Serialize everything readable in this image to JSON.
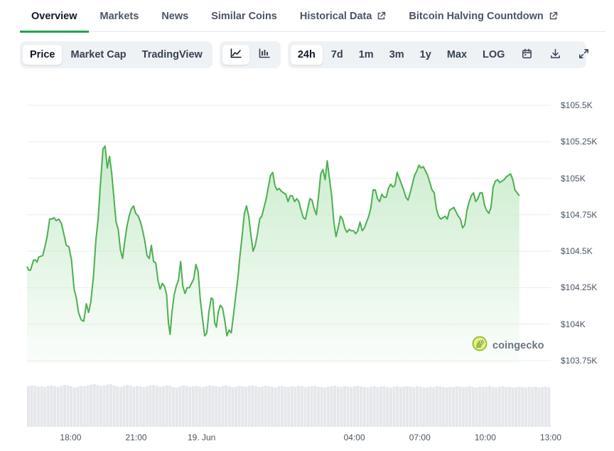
{
  "nav": {
    "tabs": [
      {
        "label": "Overview",
        "active": true,
        "external": false
      },
      {
        "label": "Markets",
        "active": false,
        "external": false
      },
      {
        "label": "News",
        "active": false,
        "external": false
      },
      {
        "label": "Similar Coins",
        "active": false,
        "external": false
      },
      {
        "label": "Historical Data",
        "active": false,
        "external": true
      },
      {
        "label": "Bitcoin Halving Countdown",
        "active": false,
        "external": true
      }
    ]
  },
  "toolbar": {
    "chart_views": [
      "Price",
      "Market Cap",
      "TradingView"
    ],
    "selected_view": "Price",
    "chart_styles": [
      "line-chart-icon",
      "candlestick-icon"
    ],
    "selected_style": "line-chart-icon",
    "ranges": [
      "24h",
      "7d",
      "1m",
      "3m",
      "1y",
      "Max",
      "LOG"
    ],
    "selected_range": "24h",
    "actions": [
      "calendar-icon",
      "download-icon",
      "expand-icon"
    ]
  },
  "chart_data": {
    "type": "area",
    "line_color": "#4caf50",
    "fill_color": "#c8ebcb",
    "y_ticks": [
      "$105.5K",
      "$105.25K",
      "$105K",
      "$104.75K",
      "$104.5K",
      "$104.25K",
      "$104K",
      "$103.75K"
    ],
    "y_tick_values": [
      105500,
      105250,
      105000,
      104750,
      104500,
      104250,
      104000,
      103750
    ],
    "ylim": [
      103750,
      105500
    ],
    "x_ticks": [
      "18:00",
      "21:00",
      "19. Jun",
      "04:00",
      "07:00",
      "10:00",
      "13:00"
    ],
    "x_tick_hours": [
      3.2,
      6.2,
      9.2,
      16.2,
      19.2,
      22.2,
      25.2
    ],
    "xlim": [
      0,
      24.0
    ],
    "grid": true,
    "volume_bars": true,
    "series": [
      {
        "values": [
          [
            0.0,
            104395
          ],
          [
            0.08,
            104370
          ],
          [
            0.16,
            104370
          ],
          [
            0.3,
            104440
          ],
          [
            0.38,
            104440
          ],
          [
            0.46,
            104425
          ],
          [
            0.54,
            104460
          ],
          [
            0.62,
            104465
          ],
          [
            0.72,
            104470
          ],
          [
            0.82,
            104530
          ],
          [
            0.92,
            104600
          ],
          [
            1.04,
            104720
          ],
          [
            1.14,
            104720
          ],
          [
            1.24,
            104730
          ],
          [
            1.34,
            104710
          ],
          [
            1.46,
            104720
          ],
          [
            1.58,
            104690
          ],
          [
            1.7,
            104610
          ],
          [
            1.8,
            104540
          ],
          [
            1.92,
            104530
          ],
          [
            2.04,
            104440
          ],
          [
            2.16,
            104240
          ],
          [
            2.26,
            104180
          ],
          [
            2.36,
            104080
          ],
          [
            2.48,
            104030
          ],
          [
            2.6,
            104020
          ],
          [
            2.72,
            104140
          ],
          [
            2.82,
            104080
          ],
          [
            2.92,
            104150
          ],
          [
            3.04,
            104320
          ],
          [
            3.16,
            104580
          ],
          [
            3.26,
            104720
          ],
          [
            3.36,
            104950
          ],
          [
            3.48,
            105200
          ],
          [
            3.58,
            105220
          ],
          [
            3.68,
            105070
          ],
          [
            3.78,
            105150
          ],
          [
            3.88,
            105040
          ],
          [
            3.98,
            104870
          ],
          [
            4.08,
            104700
          ],
          [
            4.18,
            104650
          ],
          [
            4.28,
            104510
          ],
          [
            4.38,
            104450
          ],
          [
            4.48,
            104570
          ],
          [
            4.58,
            104670
          ],
          [
            4.68,
            104740
          ],
          [
            4.78,
            104790
          ],
          [
            4.88,
            104810
          ],
          [
            4.98,
            104760
          ],
          [
            5.1,
            104740
          ],
          [
            5.2,
            104700
          ],
          [
            5.3,
            104640
          ],
          [
            5.4,
            104570
          ],
          [
            5.5,
            104470
          ],
          [
            5.6,
            104450
          ],
          [
            5.7,
            104540
          ],
          [
            5.8,
            104430
          ],
          [
            5.9,
            104420
          ],
          [
            6.0,
            104300
          ],
          [
            6.1,
            104240
          ],
          [
            6.2,
            104280
          ],
          [
            6.3,
            104260
          ],
          [
            6.4,
            104200
          ],
          [
            6.48,
            104010
          ],
          [
            6.56,
            103930
          ],
          [
            6.64,
            104080
          ],
          [
            6.74,
            104200
          ],
          [
            6.84,
            104260
          ],
          [
            6.94,
            104300
          ],
          [
            7.04,
            104430
          ],
          [
            7.14,
            104260
          ],
          [
            7.24,
            104210
          ],
          [
            7.34,
            104250
          ],
          [
            7.44,
            104250
          ],
          [
            7.54,
            104280
          ],
          [
            7.64,
            104310
          ],
          [
            7.74,
            104410
          ],
          [
            7.84,
            104360
          ],
          [
            7.94,
            104170
          ],
          [
            8.04,
            104040
          ],
          [
            8.14,
            103920
          ],
          [
            8.24,
            103940
          ],
          [
            8.34,
            104090
          ],
          [
            8.44,
            104180
          ],
          [
            8.52,
            104170
          ],
          [
            8.6,
            104010
          ],
          [
            8.68,
            103980
          ],
          [
            8.76,
            104080
          ],
          [
            8.86,
            104130
          ],
          [
            8.96,
            104110
          ],
          [
            9.06,
            104030
          ],
          [
            9.16,
            103920
          ],
          [
            9.26,
            103960
          ],
          [
            9.36,
            103940
          ],
          [
            9.46,
            104060
          ],
          [
            9.56,
            104190
          ],
          [
            9.66,
            104310
          ],
          [
            9.76,
            104470
          ],
          [
            9.86,
            104610
          ],
          [
            9.96,
            104760
          ],
          [
            10.06,
            104810
          ],
          [
            10.16,
            104740
          ],
          [
            10.26,
            104610
          ],
          [
            10.36,
            104500
          ],
          [
            10.46,
            104540
          ],
          [
            10.56,
            104620
          ],
          [
            10.66,
            104720
          ],
          [
            10.76,
            104740
          ],
          [
            10.86,
            104800
          ],
          [
            10.96,
            104860
          ],
          [
            11.06,
            104940
          ],
          [
            11.16,
            105020
          ],
          [
            11.26,
            105040
          ],
          [
            11.36,
            104950
          ],
          [
            11.46,
            104920
          ],
          [
            11.56,
            104930
          ],
          [
            11.66,
            104910
          ],
          [
            11.76,
            104900
          ],
          [
            11.86,
            104890
          ],
          [
            11.96,
            104840
          ],
          [
            12.06,
            104880
          ],
          [
            12.16,
            104880
          ],
          [
            12.26,
            104840
          ],
          [
            12.36,
            104860
          ],
          [
            12.46,
            104840
          ],
          [
            12.56,
            104780
          ],
          [
            12.66,
            104730
          ],
          [
            12.76,
            104720
          ],
          [
            12.86,
            104790
          ],
          [
            12.96,
            104860
          ],
          [
            13.06,
            104850
          ],
          [
            13.16,
            104790
          ],
          [
            13.26,
            104750
          ],
          [
            13.36,
            104880
          ],
          [
            13.46,
            105030
          ],
          [
            13.56,
            105060
          ],
          [
            13.66,
            104990
          ],
          [
            13.76,
            105120
          ],
          [
            13.86,
            105000
          ],
          [
            13.96,
            104880
          ],
          [
            14.06,
            104700
          ],
          [
            14.16,
            104600
          ],
          [
            14.26,
            104660
          ],
          [
            14.36,
            104740
          ],
          [
            14.46,
            104720
          ],
          [
            14.56,
            104660
          ],
          [
            14.66,
            104630
          ],
          [
            14.76,
            104650
          ],
          [
            14.86,
            104640
          ],
          [
            14.96,
            104640
          ],
          [
            15.06,
            104620
          ],
          [
            15.16,
            104640
          ],
          [
            15.26,
            104700
          ],
          [
            15.36,
            104640
          ],
          [
            15.46,
            104660
          ],
          [
            15.56,
            104700
          ],
          [
            15.66,
            104740
          ],
          [
            15.76,
            104800
          ],
          [
            15.86,
            104920
          ],
          [
            15.96,
            104920
          ],
          [
            16.06,
            104860
          ],
          [
            16.16,
            104840
          ],
          [
            16.26,
            104890
          ],
          [
            16.36,
            104870
          ],
          [
            16.46,
            104870
          ],
          [
            16.56,
            104930
          ],
          [
            16.66,
            104960
          ],
          [
            16.76,
            104940
          ],
          [
            16.86,
            104950
          ],
          [
            16.96,
            105040
          ],
          [
            17.06,
            105000
          ],
          [
            17.16,
            104960
          ],
          [
            17.26,
            104920
          ],
          [
            17.36,
            104870
          ],
          [
            17.46,
            104850
          ],
          [
            17.56,
            104900
          ],
          [
            17.66,
            104960
          ],
          [
            17.76,
            105020
          ],
          [
            17.86,
            105050
          ],
          [
            17.96,
            105090
          ],
          [
            18.06,
            105070
          ],
          [
            18.16,
            105080
          ],
          [
            18.26,
            105050
          ],
          [
            18.36,
            105020
          ],
          [
            18.46,
            104970
          ],
          [
            18.56,
            104920
          ],
          [
            18.66,
            104900
          ],
          [
            18.76,
            104790
          ],
          [
            18.86,
            104740
          ],
          [
            18.96,
            104720
          ],
          [
            19.06,
            104730
          ],
          [
            19.16,
            104740
          ],
          [
            19.26,
            104720
          ],
          [
            19.36,
            104780
          ],
          [
            19.46,
            104790
          ],
          [
            19.56,
            104800
          ],
          [
            19.66,
            104770
          ],
          [
            19.76,
            104740
          ],
          [
            19.86,
            104720
          ],
          [
            19.96,
            104660
          ],
          [
            20.06,
            104680
          ],
          [
            20.16,
            104780
          ],
          [
            20.26,
            104840
          ],
          [
            20.36,
            104880
          ],
          [
            20.46,
            104900
          ],
          [
            20.56,
            104840
          ],
          [
            20.66,
            104860
          ],
          [
            20.76,
            104900
          ],
          [
            20.86,
            104900
          ],
          [
            20.96,
            104820
          ],
          [
            21.06,
            104780
          ],
          [
            21.16,
            104760
          ],
          [
            21.26,
            104800
          ],
          [
            21.36,
            104940
          ],
          [
            21.46,
            104980
          ],
          [
            21.56,
            104990
          ],
          [
            21.66,
            104970
          ],
          [
            21.76,
            104980
          ],
          [
            21.86,
            104990
          ],
          [
            21.96,
            105010
          ],
          [
            22.06,
            105020
          ],
          [
            22.16,
            105030
          ],
          [
            22.26,
            104990
          ],
          [
            22.36,
            104920
          ],
          [
            22.46,
            104900
          ],
          [
            22.56,
            104880
          ]
        ]
      }
    ],
    "volume": [
      0.95,
      0.97,
      0.96,
      0.94,
      0.95,
      0.93,
      0.96,
      0.97,
      0.95,
      0.94,
      0.96,
      0.98,
      0.97,
      0.95,
      0.92,
      0.94,
      0.96,
      0.95,
      0.97,
      0.99,
      1.0,
      0.98,
      0.96,
      0.97,
      0.99,
      1.0,
      0.97,
      0.95,
      0.93,
      0.96,
      0.98,
      0.97,
      0.94,
      0.96,
      0.95,
      0.93,
      0.95,
      0.97,
      0.98,
      0.96,
      0.94,
      0.95,
      0.97,
      0.96,
      0.93,
      0.92,
      0.95,
      0.97,
      0.96,
      0.94,
      0.95,
      0.96,
      0.94,
      0.93,
      0.95,
      0.97,
      0.96,
      0.95,
      0.94,
      0.96,
      0.97,
      0.95,
      0.93,
      0.94,
      0.96,
      0.95,
      0.94,
      0.96,
      0.97,
      0.95,
      0.93,
      0.94,
      0.96,
      0.95,
      0.94,
      0.92,
      0.95,
      0.96,
      0.94,
      0.93,
      0.95,
      0.94,
      0.96,
      0.95,
      0.93,
      0.94,
      0.95,
      0.96,
      0.94,
      0.93,
      0.92,
      0.94,
      0.95,
      0.96,
      0.94,
      0.93,
      0.95,
      0.94,
      0.93,
      0.95,
      0.96,
      0.94,
      0.93,
      0.92,
      0.94,
      0.95,
      0.93,
      0.94,
      0.95,
      0.93,
      0.92,
      0.94,
      0.95,
      0.93,
      0.94,
      0.95,
      0.94,
      0.93,
      0.95,
      0.94,
      0.93,
      0.92,
      0.94,
      0.93,
      0.95,
      0.94,
      0.93,
      0.92,
      0.94,
      0.93,
      0.95,
      0.94,
      0.93,
      0.94,
      0.95,
      0.93,
      0.92,
      0.94,
      0.93,
      0.94,
      0.95,
      0.93,
      0.92,
      0.94,
      0.95,
      0.93,
      0.94,
      0.92,
      0.93,
      0.94,
      0.93,
      0.92,
      0.94,
      0.93,
      0.94,
      0.92,
      0.93,
      0.94,
      0.92
    ]
  },
  "watermark": {
    "label": "coingecko"
  }
}
